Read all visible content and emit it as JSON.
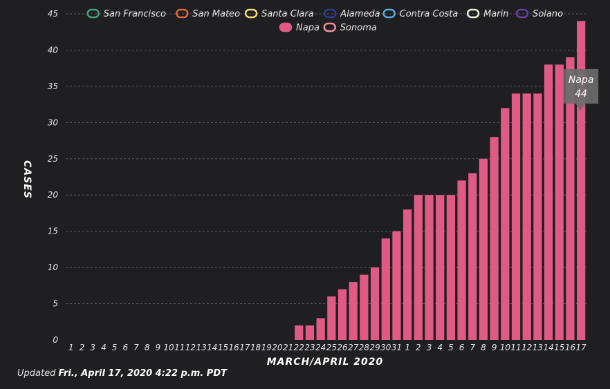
{
  "chart_data": {
    "type": "bar",
    "xlabel": "MARCH/APRIL 2020",
    "ylabel": "CASES",
    "ylim": [
      0,
      45
    ],
    "yticks": [
      0,
      5,
      10,
      15,
      20,
      25,
      30,
      35,
      40,
      45
    ],
    "grid": true,
    "legend_position": "top",
    "categories": [
      "1",
      "2",
      "3",
      "4",
      "5",
      "6",
      "7",
      "8",
      "9",
      "10",
      "11",
      "12",
      "13",
      "14",
      "15",
      "16",
      "17",
      "18",
      "19",
      "20",
      "21",
      "22",
      "23",
      "24",
      "25",
      "26",
      "27",
      "28",
      "29",
      "30",
      "31",
      "1",
      "2",
      "3",
      "4",
      "5",
      "6",
      "7",
      "8",
      "9",
      "10",
      "11",
      "12",
      "13",
      "14",
      "15",
      "16",
      "17"
    ],
    "legend": [
      {
        "name": "San Francisco",
        "color": "#3fa37a"
      },
      {
        "name": "San Mateo",
        "color": "#e0673a"
      },
      {
        "name": "Santa Clara",
        "color": "#f2df6a"
      },
      {
        "name": "Alameda",
        "color": "#2a3e8f"
      },
      {
        "name": "Contra Costa",
        "color": "#5aa9d8"
      },
      {
        "name": "Marin",
        "color": "#e8f2d6"
      },
      {
        "name": "Solano",
        "color": "#6a3fa6"
      },
      {
        "name": "Napa",
        "color": "#e05a86"
      },
      {
        "name": "Sonoma",
        "color": "#e8909f"
      }
    ],
    "series": [
      {
        "name": "Napa",
        "color": "#e05a86",
        "values": [
          0,
          0,
          0,
          0,
          0,
          0,
          0,
          0,
          0,
          0,
          0,
          0,
          0,
          0,
          0,
          0,
          0,
          0,
          0,
          0,
          0,
          2,
          2,
          3,
          6,
          7,
          8,
          9,
          10,
          14,
          15,
          18,
          20,
          20,
          20,
          20,
          22,
          23,
          25,
          28,
          32,
          34,
          34,
          34,
          38,
          38,
          39,
          44
        ]
      }
    ],
    "tooltip": {
      "series": "Napa",
      "value": "44"
    }
  },
  "updated": {
    "prefix": "Updated",
    "timestamp": "Fri., April 17, 2020 4:22 p.m. PDT"
  }
}
